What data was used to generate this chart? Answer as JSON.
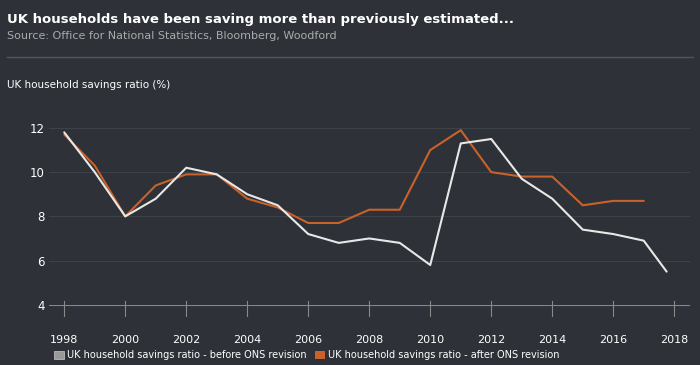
{
  "title": "UK households have been saving more than previously estimated...",
  "source": "Source: Office for National Statistics, Bloomberg, Woodford",
  "ylabel": "UK household savings ratio (%)",
  "background_color": "#2e3137",
  "text_color": "#ffffff",
  "source_color": "#aaaaaa",
  "grid_color": "#3d4148",
  "line_color": "#606570",
  "ylim": [
    4,
    13
  ],
  "yticks": [
    4,
    6,
    8,
    10,
    12
  ],
  "xlim": [
    1997.5,
    2018.5
  ],
  "xticks": [
    1998,
    2000,
    2002,
    2004,
    2006,
    2008,
    2010,
    2012,
    2014,
    2016,
    2018
  ],
  "before_revision": {
    "x": [
      1998,
      1999,
      2000,
      2001,
      2002,
      2003,
      2004,
      2005,
      2006,
      2007,
      2008,
      2009,
      2010,
      2011,
      2012,
      2013,
      2014,
      2015,
      2016,
      2017,
      2017.75
    ],
    "y": [
      11.8,
      10.0,
      8.0,
      8.8,
      10.2,
      9.9,
      9.0,
      8.5,
      7.2,
      6.8,
      7.0,
      6.8,
      5.8,
      11.3,
      11.5,
      9.7,
      8.8,
      7.4,
      7.2,
      6.9,
      5.5
    ],
    "color": "#e8e8e8",
    "label": "UK household savings ratio - before ONS revision",
    "linewidth": 1.5
  },
  "after_revision": {
    "x": [
      1998,
      1999,
      2000,
      2001,
      2002,
      2003,
      2004,
      2005,
      2006,
      2007,
      2008,
      2009,
      2010,
      2011,
      2012,
      2013,
      2014,
      2015,
      2016,
      2017
    ],
    "y": [
      11.7,
      10.3,
      8.0,
      9.4,
      9.9,
      9.9,
      8.8,
      8.4,
      7.7,
      7.7,
      8.3,
      8.3,
      11.0,
      11.9,
      10.0,
      9.8,
      9.8,
      8.5,
      8.7,
      8.7
    ],
    "color": "#c8622a",
    "label": "UK household savings ratio - after ONS revision",
    "linewidth": 1.5
  }
}
